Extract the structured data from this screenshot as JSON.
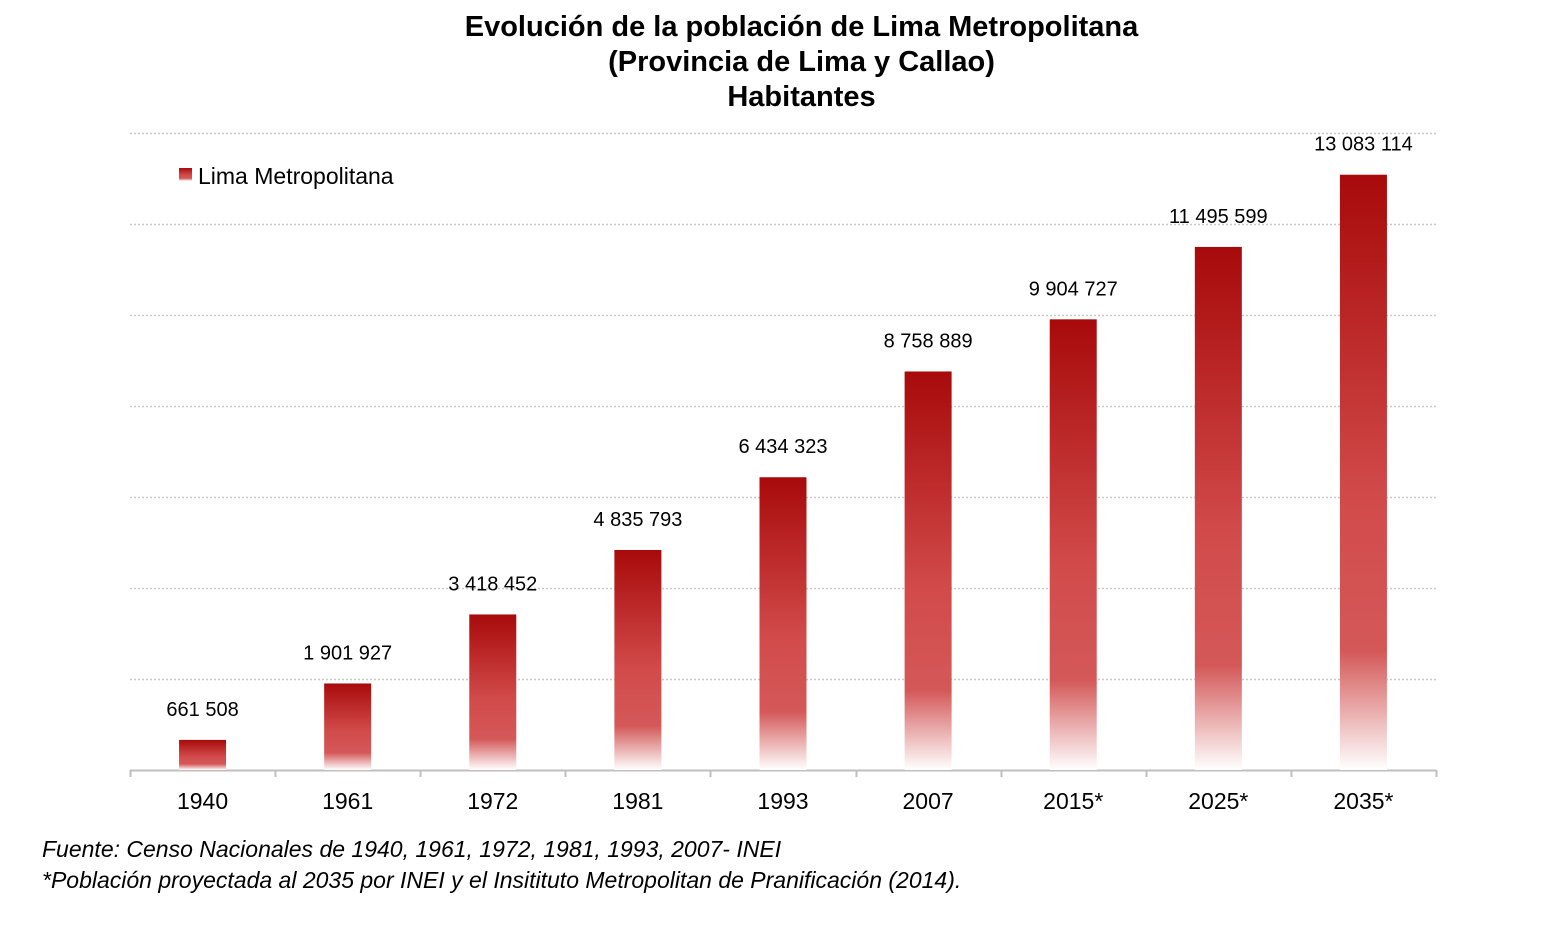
{
  "chart_data": {
    "type": "bar",
    "title": "Evolución de la población de Lima Metropolitana",
    "subtitle": "(Provincia de Lima y Callao)",
    "unit_label": "Habitantes",
    "categories": [
      "1940",
      "1961",
      "1972",
      "1981",
      "1993",
      "2007",
      "2015*",
      "2025*",
      "2035*"
    ],
    "series": [
      {
        "name": "Lima Metropolitana",
        "values": [
          661508,
          1901927,
          3418452,
          4835793,
          6434323,
          8758889,
          9904727,
          11495599,
          13083114
        ],
        "labels": [
          "661 508",
          "1 901 927",
          "3 418 452",
          "4 835 793",
          "6 434 323",
          "8 758 889",
          "9 904 727",
          "11 495 599",
          "13 083 114"
        ],
        "color_top": "#a80a0a",
        "color_bottom": "#ffffff"
      }
    ],
    "ylim": [
      0,
      14000000
    ],
    "grid": true,
    "legend_position": "top-left",
    "xlabel": "",
    "ylabel": ""
  },
  "source": {
    "line1": "Fuente: Censo Nacionales de 1940, 1961, 1972, 1981, 1993, 2007- INEI",
    "line2": "*Población proyectada al 2035 por INEI y el Insitituto Metropolitan de Pranificación (2014)."
  },
  "colors": {
    "grid": "#c8c8c8",
    "axis": "#bfbfbf",
    "bar_top": "#a80a0a",
    "bar_mid": "#d24b4b"
  }
}
